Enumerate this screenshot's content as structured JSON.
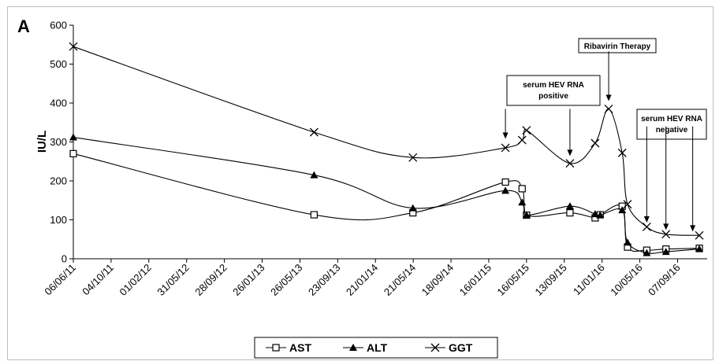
{
  "chart_data": {
    "type": "line",
    "panel_label": "A",
    "ylabel": "IU/L",
    "ylim": [
      0,
      600
    ],
    "y_ticks": [
      0,
      100,
      200,
      300,
      400,
      500,
      600
    ],
    "x_ticks": [
      "06/06/11",
      "04/10/11",
      "01/02/12",
      "31/05/12",
      "28/09/12",
      "26/01/13",
      "26/05/13",
      "23/09/13",
      "21/01/14",
      "21/05/14",
      "18/09/14",
      "16/01/15",
      "16/05/15",
      "13/09/15",
      "11/01/16",
      "10/05/16",
      "07/09/16"
    ],
    "x_tick_values": [
      "2011-06-06",
      "2011-10-04",
      "2012-02-01",
      "2012-05-31",
      "2012-09-28",
      "2013-01-26",
      "2013-05-26",
      "2013-09-23",
      "2014-01-21",
      "2014-05-21",
      "2014-09-18",
      "2015-01-16",
      "2015-05-16",
      "2015-09-13",
      "2016-01-11",
      "2016-05-10",
      "2016-09-07"
    ],
    "series": [
      {
        "name": "AST",
        "marker": "open-square",
        "points": [
          [
            "2011-06-06",
            270
          ],
          [
            "2013-07-10",
            113
          ],
          [
            "2014-05-20",
            118
          ],
          [
            "2015-03-10",
            197
          ],
          [
            "2015-05-02",
            180
          ],
          [
            "2015-05-16",
            112
          ],
          [
            "2015-10-01",
            118
          ],
          [
            "2015-12-20",
            105
          ],
          [
            "2016-01-05",
            113
          ],
          [
            "2016-03-15",
            135
          ],
          [
            "2016-04-01",
            30
          ],
          [
            "2016-06-01",
            22
          ],
          [
            "2016-08-01",
            25
          ],
          [
            "2016-11-15",
            27
          ]
        ]
      },
      {
        "name": "ALT",
        "marker": "filled-triangle",
        "points": [
          [
            "2011-06-06",
            312
          ],
          [
            "2013-07-10",
            215
          ],
          [
            "2014-05-20",
            130
          ],
          [
            "2015-03-10",
            175
          ],
          [
            "2015-05-02",
            145
          ],
          [
            "2015-05-16",
            112
          ],
          [
            "2015-10-01",
            135
          ],
          [
            "2015-12-20",
            115
          ],
          [
            "2016-01-05",
            112
          ],
          [
            "2016-03-15",
            125
          ],
          [
            "2016-04-01",
            42
          ],
          [
            "2016-06-01",
            15
          ],
          [
            "2016-08-01",
            18
          ],
          [
            "2016-11-15",
            25
          ]
        ]
      },
      {
        "name": "GGT",
        "marker": "x",
        "points": [
          [
            "2011-06-06",
            545
          ],
          [
            "2013-07-10",
            325
          ],
          [
            "2014-05-20",
            260
          ],
          [
            "2015-03-10",
            285
          ],
          [
            "2015-05-02",
            305
          ],
          [
            "2015-05-16",
            330
          ],
          [
            "2015-10-01",
            245
          ],
          [
            "2015-12-20",
            297
          ],
          [
            "2016-02-01",
            385
          ],
          [
            "2016-03-15",
            272
          ],
          [
            "2016-04-01",
            140
          ],
          [
            "2016-06-01",
            82
          ],
          [
            "2016-08-01",
            63
          ],
          [
            "2016-11-15",
            60
          ]
        ]
      }
    ],
    "annotations": [
      {
        "lines": [
          "serum HEV RNA",
          "positive"
        ],
        "boxed": true
      },
      {
        "lines": [
          "Ribavirin Therapy"
        ],
        "boxed": true
      },
      {
        "lines": [
          "serum HEV RNA",
          "negative"
        ],
        "boxed": true
      }
    ],
    "arrows": [
      {
        "date": "2015-03-10",
        "y_top": 385,
        "y_bottom": 308
      },
      {
        "date": "2015-10-01",
        "y_top": 385,
        "y_bottom": 264
      },
      {
        "date": "2016-02-01",
        "y_top": 533,
        "y_bottom": 405
      },
      {
        "date": "2016-06-01",
        "y_top": 340,
        "y_bottom": 93
      },
      {
        "date": "2016-08-01",
        "y_top": 340,
        "y_bottom": 74
      },
      {
        "date": "2016-10-25",
        "y_top": 340,
        "y_bottom": 70
      }
    ],
    "legend": {
      "placement": "bottom-center"
    },
    "grid": false
  }
}
